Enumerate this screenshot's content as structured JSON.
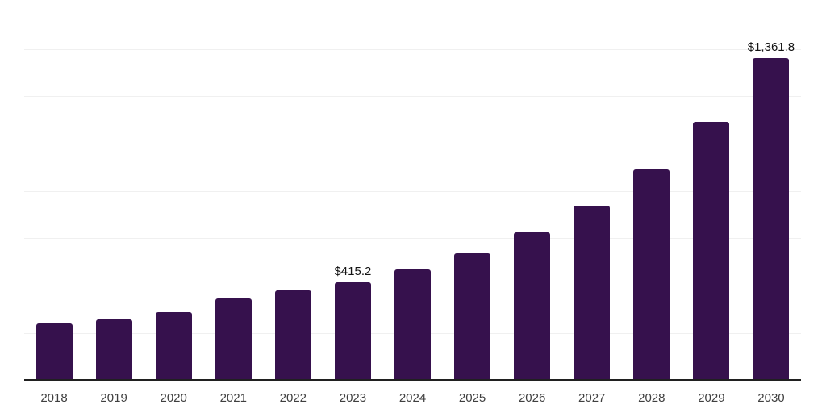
{
  "chart_data": {
    "type": "bar",
    "categories": [
      "2018",
      "2019",
      "2020",
      "2021",
      "2022",
      "2023",
      "2024",
      "2025",
      "2026",
      "2027",
      "2028",
      "2029",
      "2030"
    ],
    "values": [
      240,
      258,
      287,
      345,
      379,
      415.2,
      469,
      537,
      625,
      739,
      892,
      1092,
      1361.8
    ],
    "data_labels": {
      "2023": "$415.2",
      "2030": "$1,361.8"
    },
    "ylim": [
      0,
      1600
    ],
    "gridline_step": 200,
    "grid": true,
    "legend": "none",
    "colors": {
      "bar": "#36114D",
      "axis": "#202020",
      "gridline": "#F0F0F0",
      "value_label_text": "#141414",
      "tick_text": "#3F3F3F",
      "background": "#FFFFFF"
    }
  }
}
